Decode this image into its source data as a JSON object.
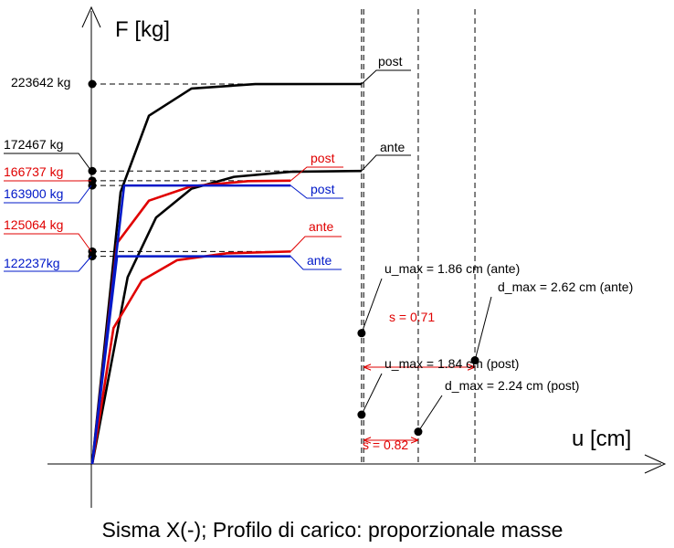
{
  "chart_data": {
    "type": "line",
    "title": "Sisma X(-); Profilo di carico: proporzionale masse",
    "xlabel": "u [cm]",
    "ylabel": "F [kg]",
    "colors": {
      "black": "#000000",
      "red": "#e00000",
      "blue": "#0018c8"
    },
    "force_labels": [
      {
        "text": "223642 kg",
        "value": 223642,
        "color": "#000000"
      },
      {
        "text": "172467 kg",
        "value": 172467,
        "color": "#000000"
      },
      {
        "text": "166737 kg",
        "value": 166737,
        "color": "#e00000"
      },
      {
        "text": "163900 kg",
        "value": 163900,
        "color": "#0018c8"
      },
      {
        "text": "125064 kg",
        "value": 125064,
        "color": "#e00000"
      },
      {
        "text": "122237kg",
        "value": 122237,
        "color": "#0018c8"
      }
    ],
    "series": [
      {
        "name": "post",
        "color": "#000000",
        "values": [
          [
            0,
            0
          ],
          [
            0.4,
            160000
          ],
          [
            0.8,
            205000
          ],
          [
            1.4,
            221000
          ],
          [
            2.3,
            223600
          ],
          [
            3.8,
            223642
          ]
        ]
      },
      {
        "name": "ante",
        "color": "#000000",
        "values": [
          [
            0,
            0
          ],
          [
            0.5,
            110000
          ],
          [
            0.9,
            145000
          ],
          [
            1.4,
            162000
          ],
          [
            2.0,
            169000
          ],
          [
            2.8,
            172000
          ],
          [
            3.8,
            172467
          ]
        ]
      },
      {
        "name": "post",
        "color": "#e00000",
        "values": [
          [
            0,
            0
          ],
          [
            0.35,
            130000
          ],
          [
            0.8,
            155000
          ],
          [
            1.4,
            163500
          ],
          [
            2.2,
            166500
          ],
          [
            2.8,
            166737
          ]
        ]
      },
      {
        "name": "ante",
        "color": "#e00000",
        "values": [
          [
            0,
            0
          ],
          [
            0.3,
            80000
          ],
          [
            0.7,
            108000
          ],
          [
            1.2,
            120000
          ],
          [
            1.9,
            124000
          ],
          [
            2.8,
            125064
          ]
        ]
      },
      {
        "name": "post",
        "color": "#0018c8",
        "values": [
          [
            0,
            0
          ],
          [
            0.45,
            163900
          ],
          [
            2.8,
            163900
          ]
        ]
      },
      {
        "name": "ante",
        "color": "#0018c8",
        "values": [
          [
            0,
            0
          ],
          [
            0.35,
            122237
          ],
          [
            2.8,
            122237
          ]
        ]
      }
    ],
    "series_labels": [
      {
        "text": "post",
        "color": "#000000"
      },
      {
        "text": "ante",
        "color": "#000000"
      },
      {
        "text": "post",
        "color": "#e00000"
      },
      {
        "text": "post",
        "color": "#0018c8"
      },
      {
        "text": "ante",
        "color": "#e00000"
      },
      {
        "text": "ante",
        "color": "#0018c8"
      }
    ],
    "vertical_lines": [
      3.8,
      3.83,
      4.6,
      5.4
    ],
    "points": [
      {
        "text": "u_max = 1.86 cm (ante)",
        "u": 3.8,
        "F": 77000
      },
      {
        "text": "d_max = 2.62 cm (ante)",
        "u": 5.4,
        "F": 61000
      },
      {
        "text": "u_max = 1.84 cm (post)",
        "u": 3.8,
        "F": 29000
      },
      {
        "text": "d_max = 2.24 cm (post)",
        "u": 4.6,
        "F": 19000
      }
    ],
    "spans": [
      {
        "text": "s = 0.71",
        "from": 3.83,
        "to": 5.4,
        "F": 57000
      },
      {
        "text": "s = 0.82",
        "from": 3.83,
        "to": 4.6,
        "F": 14000
      }
    ]
  }
}
